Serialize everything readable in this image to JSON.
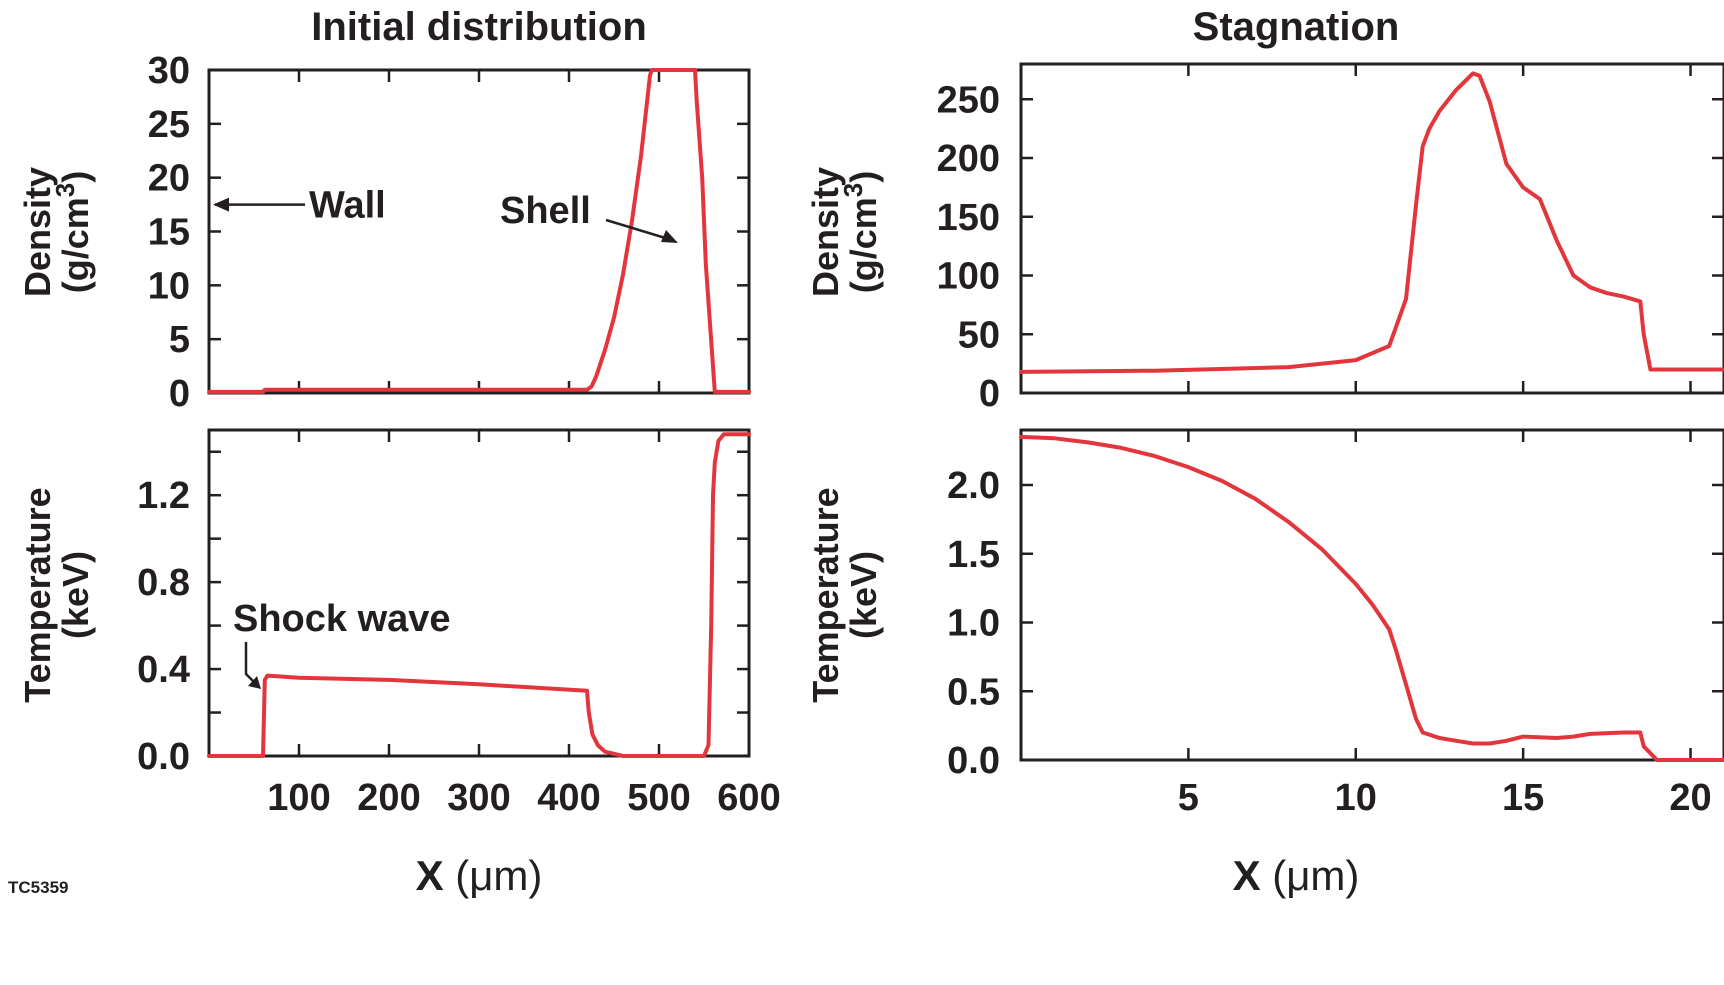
{
  "figure_tag": "TC5359",
  "colors": {
    "series": "#e2363c",
    "axis": "#231f20"
  },
  "panel_titles": {
    "left": "Initial distribution",
    "right": "Stagnation"
  },
  "chart_data": [
    {
      "id": "density-initial",
      "type": "line",
      "title": "Initial distribution",
      "ylabel_lines": [
        "Density",
        "(g/cm",
        "3",
        ")"
      ],
      "xlim": [
        0,
        600
      ],
      "ylim": [
        0,
        30
      ],
      "yticks": [
        0,
        5,
        10,
        15,
        20,
        25,
        30
      ],
      "ytick_labels": [
        "0",
        "5",
        "10",
        "15",
        "20",
        "25",
        "30"
      ],
      "xticks": [
        100,
        200,
        300,
        400,
        500,
        600
      ],
      "annotations": [
        {
          "text": "Wall",
          "x": 0,
          "y": 17.5
        },
        {
          "text": "Shell",
          "x": 520,
          "y": 14
        }
      ],
      "series": [
        {
          "x": [
            0,
            60,
            62,
            200,
            420,
            425,
            430,
            440,
            450,
            460,
            470,
            480,
            490,
            492,
            540,
            542,
            548,
            552,
            562,
            564,
            600
          ],
          "y": [
            0.1,
            0.1,
            0.3,
            0.3,
            0.3,
            0.6,
            1.5,
            4,
            7,
            11,
            16,
            22,
            29.5,
            30,
            30,
            27,
            20,
            12,
            0.1,
            0.1,
            0.1
          ]
        }
      ]
    },
    {
      "id": "temperature-initial",
      "type": "line",
      "ylabel_lines": [
        "Temperature",
        "(keV)"
      ],
      "xlabel": "X",
      "xlabel_unit": "(μm)",
      "xlim": [
        0,
        600
      ],
      "ylim": [
        0,
        1.5
      ],
      "yticks": [
        0.0,
        0.4,
        0.8,
        1.2
      ],
      "ytick_labels": [
        "0.0",
        "0.4",
        "0.8",
        "1.2"
      ],
      "minor_yticks": [
        0.2,
        0.6,
        1.0,
        1.4
      ],
      "xticks": [
        100,
        200,
        300,
        400,
        500,
        600
      ],
      "xtick_labels": [
        "100",
        "200",
        "300",
        "400",
        "500",
        "600"
      ],
      "annotations": [
        {
          "text": "Shock wave",
          "x": 60,
          "y": 0.36
        }
      ],
      "series": [
        {
          "x": [
            0,
            60,
            62,
            65,
            100,
            200,
            300,
            420,
            422,
            426,
            432,
            440,
            450,
            460,
            500,
            550,
            555,
            558,
            560,
            562,
            566,
            572,
            600
          ],
          "y": [
            0,
            0,
            0.35,
            0.37,
            0.36,
            0.35,
            0.33,
            0.3,
            0.2,
            0.1,
            0.05,
            0.02,
            0.01,
            0,
            0,
            0,
            0.05,
            0.6,
            1.2,
            1.35,
            1.45,
            1.48,
            1.48
          ]
        }
      ]
    },
    {
      "id": "density-stagnation",
      "type": "line",
      "title": "Stagnation",
      "ylabel_lines": [
        "Density",
        "(g/cm",
        "3",
        ")"
      ],
      "xlim": [
        0,
        21
      ],
      "ylim": [
        0,
        280
      ],
      "yticks": [
        0,
        50,
        100,
        150,
        200,
        250
      ],
      "ytick_labels": [
        "0",
        "50",
        "100",
        "150",
        "200",
        "250"
      ],
      "xticks": [
        5,
        10,
        15,
        20
      ],
      "series": [
        {
          "x": [
            0,
            4,
            8,
            10,
            11,
            11.5,
            11.8,
            12,
            12.2,
            12.5,
            13,
            13.5,
            13.7,
            14,
            14.5,
            15,
            15.5,
            16,
            16.5,
            17,
            17.5,
            18,
            18.5,
            18.6,
            18.8,
            19,
            21
          ],
          "y": [
            18,
            19,
            22,
            28,
            40,
            80,
            160,
            210,
            225,
            240,
            258,
            272,
            270,
            248,
            195,
            175,
            165,
            130,
            100,
            90,
            85,
            82,
            78,
            50,
            20,
            20,
            20
          ]
        }
      ]
    },
    {
      "id": "temperature-stagnation",
      "type": "line",
      "ylabel_lines": [
        "Temperature",
        "(keV)"
      ],
      "xlabel": "X",
      "xlabel_unit": "(μm)",
      "xlim": [
        0,
        21
      ],
      "ylim": [
        0,
        2.4
      ],
      "yticks": [
        0.0,
        0.5,
        1.0,
        1.5,
        2.0
      ],
      "ytick_labels": [
        "0.0",
        "0.5",
        "1.0",
        "1.5",
        "2.0"
      ],
      "xticks": [
        5,
        10,
        15,
        20
      ],
      "xtick_labels": [
        "5",
        "10",
        "15",
        "20"
      ],
      "series": [
        {
          "x": [
            0,
            1,
            2,
            3,
            4,
            5,
            6,
            7,
            8,
            9,
            10,
            10.5,
            11,
            11.2,
            11.5,
            11.8,
            12,
            12.5,
            13,
            13.5,
            14,
            14.5,
            15,
            16,
            16.5,
            17,
            18,
            18.5,
            18.6,
            19,
            21
          ],
          "y": [
            2.35,
            2.34,
            2.31,
            2.27,
            2.21,
            2.13,
            2.03,
            1.9,
            1.73,
            1.53,
            1.28,
            1.13,
            0.95,
            0.8,
            0.55,
            0.3,
            0.2,
            0.16,
            0.14,
            0.12,
            0.12,
            0.14,
            0.17,
            0.16,
            0.17,
            0.19,
            0.2,
            0.2,
            0.1,
            0,
            0
          ]
        }
      ]
    }
  ]
}
